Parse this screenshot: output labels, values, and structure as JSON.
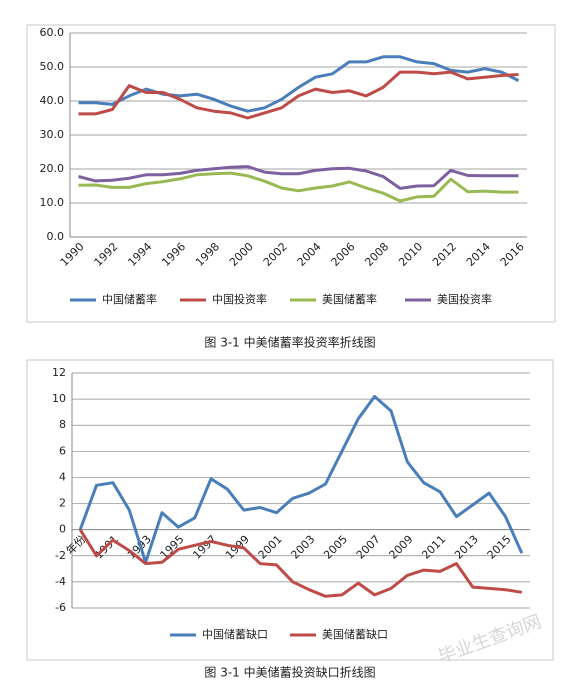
{
  "chart_data": [
    {
      "type": "line",
      "categories": [
        "1990",
        null,
        "1992",
        null,
        "1994",
        null,
        "1996",
        null,
        "1998",
        null,
        "2000",
        null,
        "2002",
        null,
        "2004",
        null,
        "2006",
        null,
        "2008",
        null,
        "2010",
        null,
        "2012",
        null,
        "2014",
        null,
        "2016"
      ],
      "ylim": [
        0,
        60
      ],
      "yticks": [
        {
          "value": 0,
          "label": "0.0"
        },
        {
          "value": 10,
          "label": "10.0"
        },
        {
          "value": 20,
          "label": "20.0"
        },
        {
          "value": 30,
          "label": "30.0"
        },
        {
          "value": 40,
          "label": "40.0"
        },
        {
          "value": 50,
          "label": "50.0"
        },
        {
          "value": 60,
          "label": "60.0"
        }
      ],
      "grid": true,
      "legend": "bottom",
      "series": [
        {
          "name": "中国储蓄率",
          "color": "#4a7ebb",
          "values": [
            39.5,
            39.5,
            39,
            41.5,
            43.5,
            42,
            41.5,
            42,
            40.5,
            38.5,
            37,
            38,
            40.5,
            44,
            47,
            48,
            51.5,
            51.5,
            53,
            53,
            51.5,
            51,
            49,
            48.5,
            49.5,
            48.5,
            46
          ]
        },
        {
          "name": "中国投资率",
          "color": "#be4b48",
          "values": [
            36.2,
            36.2,
            37.5,
            44.5,
            42.5,
            42.5,
            40.5,
            38,
            37,
            36.5,
            35,
            36.5,
            38,
            41.5,
            43.5,
            42.5,
            43,
            41.5,
            44,
            48.5,
            48.5,
            48,
            48.5,
            46.5,
            47,
            47.5,
            47.8
          ]
        },
        {
          "name": "美国储蓄率",
          "color": "#98b954",
          "values": [
            15.2,
            15.3,
            14.6,
            14.6,
            15.7,
            16.3,
            17.1,
            18.3,
            18.6,
            18.8,
            18,
            16.4,
            14.4,
            13.6,
            14.4,
            15,
            16.2,
            14.4,
            12.9,
            10.6,
            11.8,
            12,
            17,
            13.3,
            13.5,
            13.2,
            13.2
          ]
        },
        {
          "name": "美国投资率",
          "color": "#7d60a0",
          "values": [
            17.8,
            16.5,
            16.7,
            17.3,
            18.3,
            18.3,
            18.7,
            19.6,
            20.1,
            20.5,
            20.7,
            19.1,
            18.6,
            18.6,
            19.6,
            20.1,
            20.2,
            19.4,
            17.8,
            14.3,
            15,
            15.1,
            19.6,
            18.1,
            18,
            18,
            18
          ]
        }
      ]
    },
    {
      "type": "line",
      "categories": [
        "年份",
        null,
        "1991",
        null,
        "1993",
        null,
        "1995",
        null,
        "1997",
        null,
        "1999",
        null,
        "2001",
        null,
        "2003",
        null,
        "2005",
        null,
        "2007",
        null,
        "2009",
        null,
        "2011",
        null,
        "2013",
        null,
        "2015",
        null
      ],
      "ylim": [
        -6,
        12
      ],
      "yticks": [
        -6,
        -4,
        -2,
        0,
        2,
        4,
        6,
        8,
        10,
        12
      ],
      "grid": true,
      "legend": "bottom",
      "series": [
        {
          "name": "中国储蓄缺口",
          "color": "#4a7ebb",
          "values": [
            0,
            3.4,
            3.6,
            1.5,
            -2.5,
            1.3,
            0.2,
            0.9,
            3.9,
            3.1,
            1.5,
            1.7,
            1.3,
            2.4,
            2.8,
            3.5,
            6,
            8.5,
            10.2,
            9.1,
            5.2,
            3.6,
            2.9,
            1,
            1.9,
            2.8,
            1,
            -1.8
          ]
        },
        {
          "name": "美国储蓄缺口",
          "color": "#be4b48",
          "values": [
            0,
            -2,
            -0.8,
            -1.6,
            -2.6,
            -2.5,
            -1.5,
            -1.2,
            -0.9,
            -1.2,
            -1.4,
            -2.6,
            -2.7,
            -4,
            -4.6,
            -5.1,
            -5,
            -4.1,
            -5,
            -4.5,
            -3.5,
            -3.1,
            -3.2,
            -2.6,
            -4.4,
            -4.5,
            -4.6,
            -4.8
          ]
        }
      ]
    }
  ],
  "captions": [
    "图 3-1 中美储蓄率投资率折线图",
    "图 3-1  中美储蓄投资缺口折线图"
  ],
  "watermark": "毕业生查询网"
}
